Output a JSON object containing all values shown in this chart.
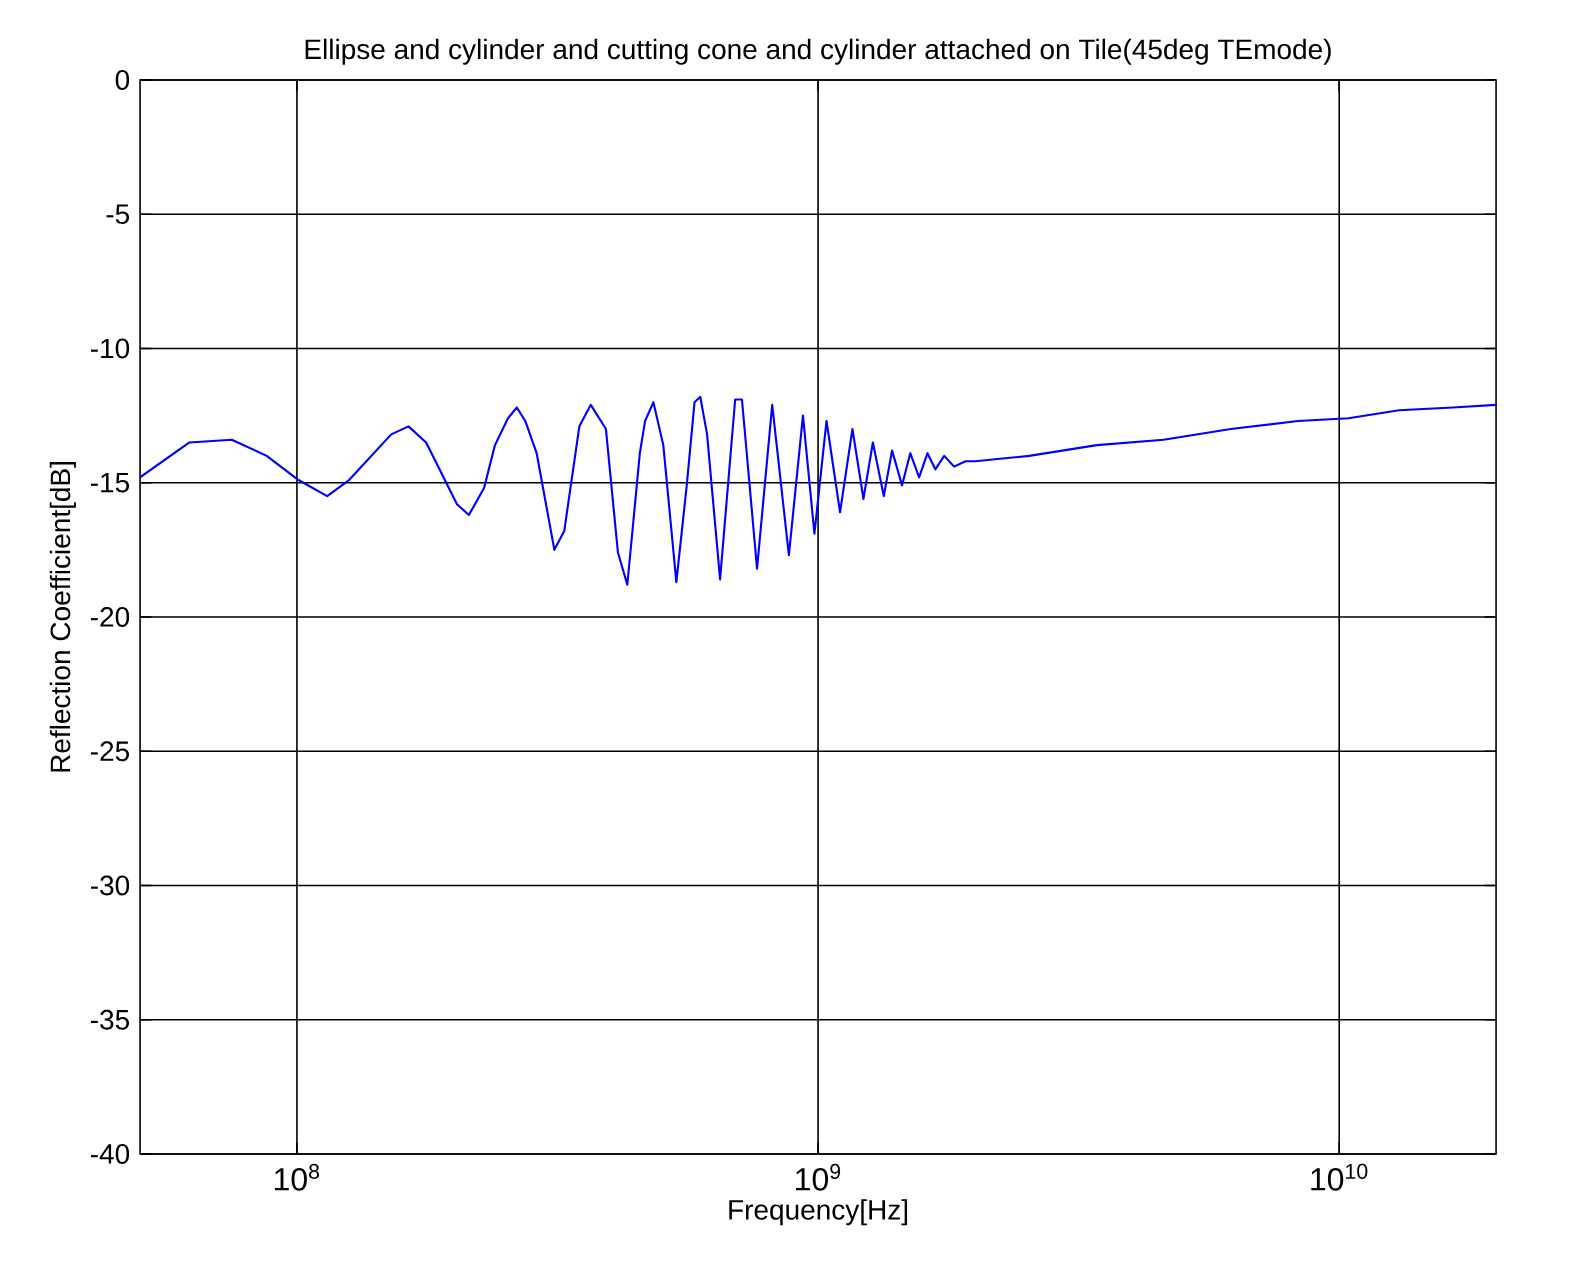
{
  "chart_data": {
    "type": "line",
    "title": "Ellipse and cylinder and cutting cone and cylinder attached on Tile(45deg TEmode)",
    "xlabel": "Frequency[Hz]",
    "ylabel": "Reflection Coefficient[dB]",
    "log": "x",
    "grid": true,
    "line_style": "solid",
    "marker": "none",
    "xlim": [
      50000000.0,
      20000000000.0
    ],
    "ylim": [
      -40,
      0
    ],
    "xticks": [
      {
        "value": 100000000.0,
        "label": "10$^{8}$"
      },
      {
        "value": 1000000000.0,
        "label": "10$^{9}$"
      },
      {
        "value": 10000000000.0,
        "label": "10$^{10}$"
      }
    ],
    "yticks": [
      -40,
      -35,
      -30,
      -25,
      -20,
      -15,
      -10,
      -5,
      0
    ],
    "series": [
      {
        "color": "#0000ff",
        "x": [
          50000000.0,
          62200000.0,
          75000000.0,
          87500000.0,
          100700000.0,
          114300000.0,
          125900000.0,
          151700000.0,
          163700000.0,
          177000000.0,
          202800000.0,
          213800000.0,
          228600000.0,
          239900000.0,
          254100000.0,
          264200000.0,
          274200000.0,
          288400000.0,
          311900000.0,
          325800000.0,
          348300000.0,
          366400000.0,
          391700000.0,
          413000000.0,
          430500000.0,
          455000000.0,
          465600000.0,
          483100000.0,
          504700000.0,
          534600000.0,
          559800000.0,
          579400000.0,
          594300000.0,
          612400000.0,
          648600000.0,
          693400000.0,
          714500000.0,
          763800000.0,
          816600000.0,
          879000000.0,
          935400000.0,
          984000000.0,
          1038000000.0,
          1102000000.0,
          1164000000.0,
          1222000000.0,
          1274000000.0,
          1337000000.0,
          1387000000.0,
          1449000000.0,
          1503000000.0,
          1563000000.0,
          1622000000.0,
          1679000000.0,
          1746000000.0,
          1824000000.0,
          1919000000.0,
          2004000000.0,
          2259000000.0,
          2541000000.0,
          3428000000.0,
          4603000000.0,
          6194000000.0,
          8337000000.0,
          10420000000.0,
          13030000000.0,
          16520000000.0,
          20000000000.0
        ],
        "values": [
          -14.8,
          -13.5,
          -13.4,
          -14.0,
          -14.9,
          -15.5,
          -14.9,
          -13.2,
          -12.9,
          -13.5,
          -15.8,
          -16.2,
          -15.2,
          -13.6,
          -12.6,
          -12.2,
          -12.7,
          -13.9,
          -17.5,
          -16.8,
          -12.9,
          -12.1,
          -13.0,
          -17.6,
          -18.8,
          -13.9,
          -12.7,
          -12.0,
          -13.6,
          -18.7,
          -15.1,
          -12.0,
          -11.8,
          -13.2,
          -18.6,
          -11.9,
          -11.9,
          -18.2,
          -12.1,
          -17.7,
          -12.5,
          -16.9,
          -12.7,
          -16.1,
          -13.0,
          -15.6,
          -13.5,
          -15.5,
          -13.8,
          -15.1,
          -13.9,
          -14.8,
          -13.9,
          -14.5,
          -14.0,
          -14.4,
          -14.2,
          -14.2,
          -14.1,
          -14.0,
          -13.6,
          -13.4,
          -13.0,
          -12.7,
          -12.6,
          -12.3,
          -12.2,
          -12.1
        ]
      }
    ]
  }
}
